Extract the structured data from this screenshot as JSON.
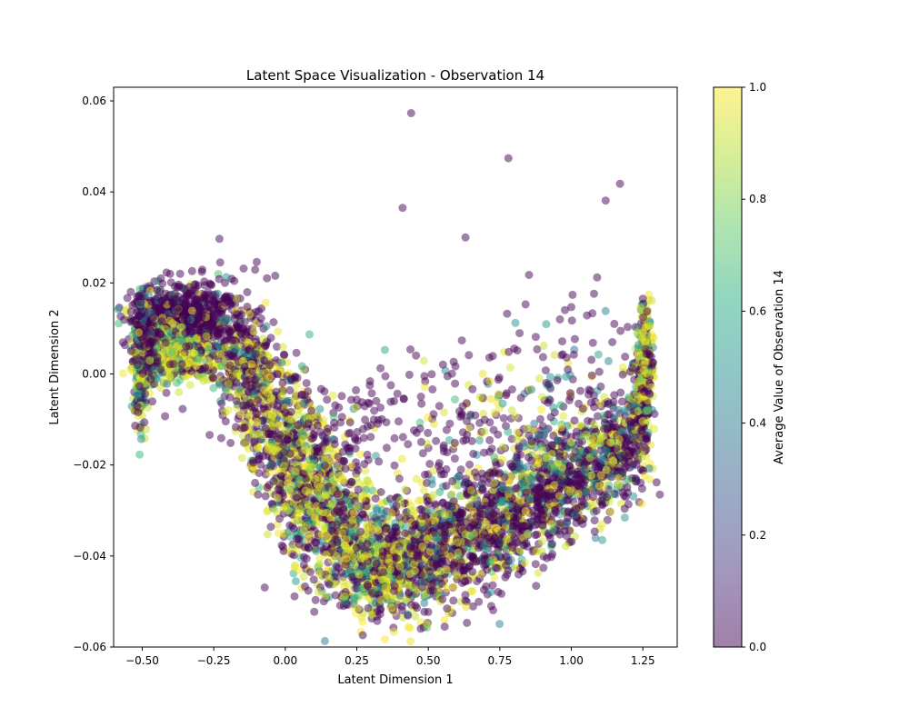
{
  "chart_data": {
    "type": "scatter",
    "title": "Latent Space Visualization - Observation 14",
    "xlabel": "Latent Dimension 1",
    "ylabel": "Latent Dimension 2",
    "xlim": [
      -0.6,
      1.37
    ],
    "ylim": [
      -0.06,
      0.063
    ],
    "xticks": [
      -0.5,
      -0.25,
      0.0,
      0.25,
      0.5,
      0.75,
      1.0,
      1.25
    ],
    "xtick_labels": [
      "−0.50",
      "−0.25",
      "0.00",
      "0.25",
      "0.50",
      "0.75",
      "1.00",
      "1.25"
    ],
    "yticks": [
      -0.06,
      -0.04,
      -0.02,
      0.0,
      0.02,
      0.04,
      0.06
    ],
    "ytick_labels": [
      "−0.06",
      "−0.04",
      "−0.02",
      "0.00",
      "0.02",
      "0.04",
      "0.06"
    ],
    "grid": false,
    "colormap": "viridis",
    "marker_alpha": 0.5,
    "colorbar": {
      "label": "Average Value of Observation 14",
      "range": [
        0.0,
        1.0
      ],
      "ticks": [
        0.0,
        0.2,
        0.4,
        0.6,
        0.8,
        1.0
      ],
      "tick_labels": [
        "0.0",
        "0.2",
        "0.4",
        "0.6",
        "0.8",
        "1.0"
      ]
    },
    "points": [
      {
        "x": 0.44,
        "y": 0.0573,
        "c": 0
      },
      {
        "x": 0.78,
        "y": 0.0474,
        "c": 0
      },
      {
        "x": 1.17,
        "y": 0.0418,
        "c": 0
      },
      {
        "x": 1.12,
        "y": 0.0381,
        "c": 0
      },
      {
        "x": 0.41,
        "y": 0.0365,
        "c": 0
      },
      {
        "x": 0.63,
        "y": 0.03,
        "c": 0
      },
      {
        "x": -0.23,
        "y": 0.0297,
        "c": 0
      },
      {
        "x": -0.1,
        "y": 0.0246,
        "c": 0
      },
      {
        "x": 1.09,
        "y": 0.0212,
        "c": 0
      },
      {
        "x": 0.84,
        "y": 0.0153,
        "c": 0
      },
      {
        "x": 0.96,
        "y": 0.012,
        "c": 0
      },
      {
        "x": 1.15,
        "y": 0.011,
        "c": 0
      },
      {
        "x": 0.35,
        "y": -0.0005,
        "c": 0
      },
      {
        "x": 0.29,
        "y": -0.0063,
        "c": 0
      },
      {
        "x": -0.42,
        "y": -0.0093,
        "c": 0
      },
      {
        "x": 0.27,
        "y": -0.0545,
        "c": 1
      },
      {
        "x": 0.72,
        "y": -0.051,
        "c": 0
      },
      {
        "x": 0.93,
        "y": -0.0402,
        "c": 0
      },
      {
        "x": 0.74,
        "y": -0.0062,
        "c": 1
      },
      {
        "x": 0.76,
        "y": -0.0065,
        "c": 0.5
      }
    ],
    "clusters": [
      {
        "cx": -0.37,
        "cy": 0.0125,
        "sx": 0.08,
        "sy": 0.0035,
        "n": 650,
        "p": [
          0.9,
          0.05,
          0.05
        ]
      },
      {
        "cx": -0.42,
        "cy": 0.006,
        "sx": 0.06,
        "sy": 0.003,
        "n": 260,
        "p": [
          0.3,
          0.4,
          0.3
        ]
      },
      {
        "cx": -0.38,
        "cy": 0.003,
        "sx": 0.07,
        "sy": 0.0025,
        "n": 220,
        "p": [
          0.15,
          0.2,
          0.65
        ]
      },
      {
        "cx": -0.505,
        "cy": -0.003,
        "sx": 0.012,
        "sy": 0.005,
        "n": 160,
        "p": [
          0.3,
          0.3,
          0.4
        ]
      },
      {
        "cx": -0.48,
        "cy": 0.008,
        "sx": 0.025,
        "sy": 0.0045,
        "n": 150,
        "p": [
          0.6,
          0.25,
          0.15
        ]
      },
      {
        "cx": -0.2,
        "cy": 0.009,
        "sx": 0.07,
        "sy": 0.006,
        "n": 200,
        "p": [
          0.75,
          0.1,
          0.15
        ]
      },
      {
        "cx": -0.13,
        "cy": 0.0,
        "sx": 0.06,
        "sy": 0.005,
        "n": 220,
        "p": [
          0.45,
          0.2,
          0.35
        ]
      },
      {
        "cx": -0.05,
        "cy": -0.008,
        "sx": 0.07,
        "sy": 0.007,
        "n": 260,
        "p": [
          0.45,
          0.15,
          0.4
        ]
      },
      {
        "cx": 0.03,
        "cy": -0.017,
        "sx": 0.07,
        "sy": 0.007,
        "n": 300,
        "p": [
          0.45,
          0.15,
          0.4
        ]
      },
      {
        "cx": 0.1,
        "cy": -0.026,
        "sx": 0.08,
        "sy": 0.007,
        "n": 340,
        "p": [
          0.4,
          0.2,
          0.4
        ]
      },
      {
        "cx": 0.2,
        "cy": -0.035,
        "sx": 0.08,
        "sy": 0.007,
        "n": 380,
        "p": [
          0.4,
          0.2,
          0.4
        ]
      },
      {
        "cx": 0.32,
        "cy": -0.042,
        "sx": 0.08,
        "sy": 0.006,
        "n": 420,
        "p": [
          0.35,
          0.25,
          0.4
        ]
      },
      {
        "cx": 0.45,
        "cy": -0.04,
        "sx": 0.08,
        "sy": 0.0065,
        "n": 400,
        "p": [
          0.45,
          0.2,
          0.35
        ]
      },
      {
        "cx": 0.6,
        "cy": -0.036,
        "sx": 0.08,
        "sy": 0.0065,
        "n": 380,
        "p": [
          0.6,
          0.15,
          0.25
        ]
      },
      {
        "cx": 0.75,
        "cy": -0.032,
        "sx": 0.07,
        "sy": 0.006,
        "n": 340,
        "p": [
          0.65,
          0.15,
          0.2
        ]
      },
      {
        "cx": 0.9,
        "cy": -0.027,
        "sx": 0.06,
        "sy": 0.006,
        "n": 320,
        "p": [
          0.6,
          0.15,
          0.25
        ]
      },
      {
        "cx": 1.03,
        "cy": -0.021,
        "sx": 0.06,
        "sy": 0.006,
        "n": 300,
        "p": [
          0.55,
          0.2,
          0.25
        ]
      },
      {
        "cx": 1.15,
        "cy": -0.017,
        "sx": 0.05,
        "sy": 0.0055,
        "n": 260,
        "p": [
          0.55,
          0.2,
          0.25
        ]
      },
      {
        "cx": 1.24,
        "cy": -0.008,
        "sx": 0.025,
        "sy": 0.007,
        "n": 240,
        "p": [
          0.55,
          0.2,
          0.25
        ]
      },
      {
        "cx": 1.26,
        "cy": 0.005,
        "sx": 0.012,
        "sy": 0.006,
        "n": 170,
        "p": [
          0.35,
          0.15,
          0.5
        ]
      },
      {
        "cx": 0.65,
        "cy": -0.015,
        "sx": 0.12,
        "sy": 0.007,
        "n": 130,
        "p": [
          0.65,
          0.1,
          0.25
        ]
      },
      {
        "cx": 0.9,
        "cy": -0.008,
        "sx": 0.1,
        "sy": 0.007,
        "n": 90,
        "p": [
          0.55,
          0.2,
          0.25
        ]
      },
      {
        "cx": 0.92,
        "cy": 0.005,
        "sx": 0.12,
        "sy": 0.006,
        "n": 35,
        "p": [
          0.9,
          0.05,
          0.05
        ]
      },
      {
        "cx": 0.55,
        "cy": -0.001,
        "sx": 0.12,
        "sy": 0.005,
        "n": 30,
        "p": [
          0.9,
          0.05,
          0.05
        ]
      },
      {
        "cx": 0.25,
        "cy": -0.01,
        "sx": 0.07,
        "sy": 0.005,
        "n": 60,
        "p": [
          0.9,
          0.05,
          0.05
        ]
      }
    ]
  }
}
